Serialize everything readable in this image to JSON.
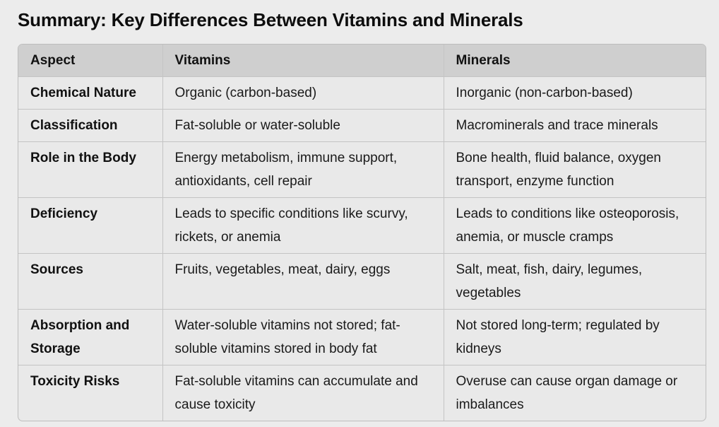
{
  "title": "Summary: Key Differences Between Vitamins and Minerals",
  "table": {
    "headers": [
      "Aspect",
      "Vitamins",
      "Minerals"
    ],
    "rows": [
      {
        "aspect": "Chemical Nature",
        "vitamins": "Organic (carbon-based)",
        "minerals": "Inorganic (non-carbon-based)"
      },
      {
        "aspect": "Classification",
        "vitamins": "Fat-soluble or water-soluble",
        "minerals": "Macrominerals and trace minerals"
      },
      {
        "aspect": "Role in the Body",
        "vitamins": "Energy metabolism, immune support, antioxidants, cell repair",
        "minerals": "Bone health, fluid balance, oxygen transport, enzyme function"
      },
      {
        "aspect": "Deficiency",
        "vitamins": "Leads to specific conditions like scurvy, rickets, or anemia",
        "minerals": "Leads to conditions like osteoporosis, anemia, or muscle cramps"
      },
      {
        "aspect": "Sources",
        "vitamins": "Fruits, vegetables, meat, dairy, eggs",
        "minerals": "Salt, meat, fish, dairy, legumes, vegetables"
      },
      {
        "aspect": "Absorption and Storage",
        "vitamins": "Water-soluble vitamins not stored; fat-soluble vitamins stored in body fat",
        "minerals": "Not stored long-term; regulated by kidneys"
      },
      {
        "aspect": "Toxicity Risks",
        "vitamins": "Fat-soluble vitamins can accumulate and cause toxicity",
        "minerals": "Overuse can cause organ damage or imbalances"
      }
    ]
  }
}
